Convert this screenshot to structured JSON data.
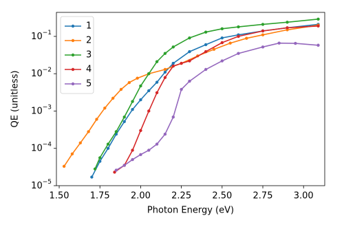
{
  "chart_data": {
    "type": "line",
    "xlabel": "Photon Energy (eV)",
    "ylabel": "QE (unitless)",
    "xlim": [
      1.483,
      3.13
    ],
    "ylim": [
      1e-05,
      0.44
    ],
    "yscale": "log",
    "xticks": [
      {
        "value": 1.5,
        "label": "1.50"
      },
      {
        "value": 1.75,
        "label": "1.75"
      },
      {
        "value": 2.0,
        "label": "2.00"
      },
      {
        "value": 2.25,
        "label": "2.25"
      },
      {
        "value": 2.5,
        "label": "2.50"
      },
      {
        "value": 2.75,
        "label": "2.75"
      },
      {
        "value": 3.0,
        "label": "3.00"
      }
    ],
    "yticks": [
      {
        "value": 1e-05,
        "label": "10−5"
      },
      {
        "value": 0.0001,
        "label": "10−4"
      },
      {
        "value": 0.001,
        "label": "10−3"
      },
      {
        "value": 0.01,
        "label": "10−2"
      },
      {
        "value": 0.1,
        "label": "10−1"
      }
    ],
    "legend": "upper left",
    "series": [
      {
        "name": "1",
        "color": "#1f77b4",
        "x": [
          1.7,
          1.75,
          1.8,
          1.85,
          1.9,
          1.95,
          2.0,
          2.05,
          2.1,
          2.15,
          2.2,
          2.3,
          2.4,
          2.5,
          2.6,
          2.75,
          2.9,
          3.09
        ],
        "values": [
          1.7e-05,
          4.5e-05,
          0.0001,
          0.00024,
          0.00052,
          0.0011,
          0.002,
          0.0035,
          0.0059,
          0.011,
          0.019,
          0.039,
          0.06,
          0.091,
          0.11,
          0.14,
          0.17,
          0.21
        ]
      },
      {
        "name": "2",
        "color": "#ff7f0e",
        "x": [
          1.53,
          1.58,
          1.63,
          1.68,
          1.73,
          1.78,
          1.83,
          1.88,
          1.93,
          1.98,
          2.05,
          2.15,
          2.25,
          2.35,
          2.45,
          2.55,
          2.65,
          2.75,
          2.9,
          3.09
        ],
        "values": [
          3.3e-05,
          7.1e-05,
          0.00014,
          0.00028,
          0.0006,
          0.0012,
          0.0022,
          0.0038,
          0.0058,
          0.0076,
          0.01,
          0.013,
          0.019,
          0.03,
          0.045,
          0.066,
          0.089,
          0.11,
          0.15,
          0.2
        ]
      },
      {
        "name": "3",
        "color": "#2ca02c",
        "x": [
          1.72,
          1.75,
          1.8,
          1.85,
          1.9,
          1.95,
          2.0,
          2.05,
          2.1,
          2.15,
          2.2,
          2.3,
          2.4,
          2.5,
          2.6,
          2.75,
          2.9,
          3.09
        ],
        "values": [
          2.8e-05,
          5.6e-05,
          0.00013,
          0.00028,
          0.00069,
          0.0018,
          0.0047,
          0.01,
          0.021,
          0.035,
          0.052,
          0.091,
          0.13,
          0.16,
          0.18,
          0.21,
          0.24,
          0.29
        ]
      },
      {
        "name": "4",
        "color": "#d62728",
        "x": [
          1.84,
          1.9,
          1.95,
          2.0,
          2.05,
          2.1,
          2.15,
          2.2,
          2.25,
          2.3,
          2.4,
          2.5,
          2.6,
          2.75,
          2.9,
          3.09
        ],
        "values": [
          2.3e-05,
          3.5e-05,
          8.9e-05,
          0.0003,
          0.001,
          0.0031,
          0.0079,
          0.016,
          0.019,
          0.022,
          0.039,
          0.068,
          0.1,
          0.14,
          0.17,
          0.19
        ]
      },
      {
        "name": "5",
        "color": "#9467bd",
        "x": [
          1.85,
          1.9,
          1.95,
          2.0,
          2.05,
          2.1,
          2.15,
          2.2,
          2.25,
          2.3,
          2.4,
          2.5,
          2.6,
          2.75,
          2.85,
          2.95,
          3.09
        ],
        "values": [
          2.6e-05,
          3.5e-05,
          5e-05,
          6.8e-05,
          8.9e-05,
          0.00013,
          0.00024,
          0.00069,
          0.0038,
          0.0063,
          0.013,
          0.022,
          0.035,
          0.052,
          0.066,
          0.065,
          0.058
        ]
      }
    ]
  }
}
